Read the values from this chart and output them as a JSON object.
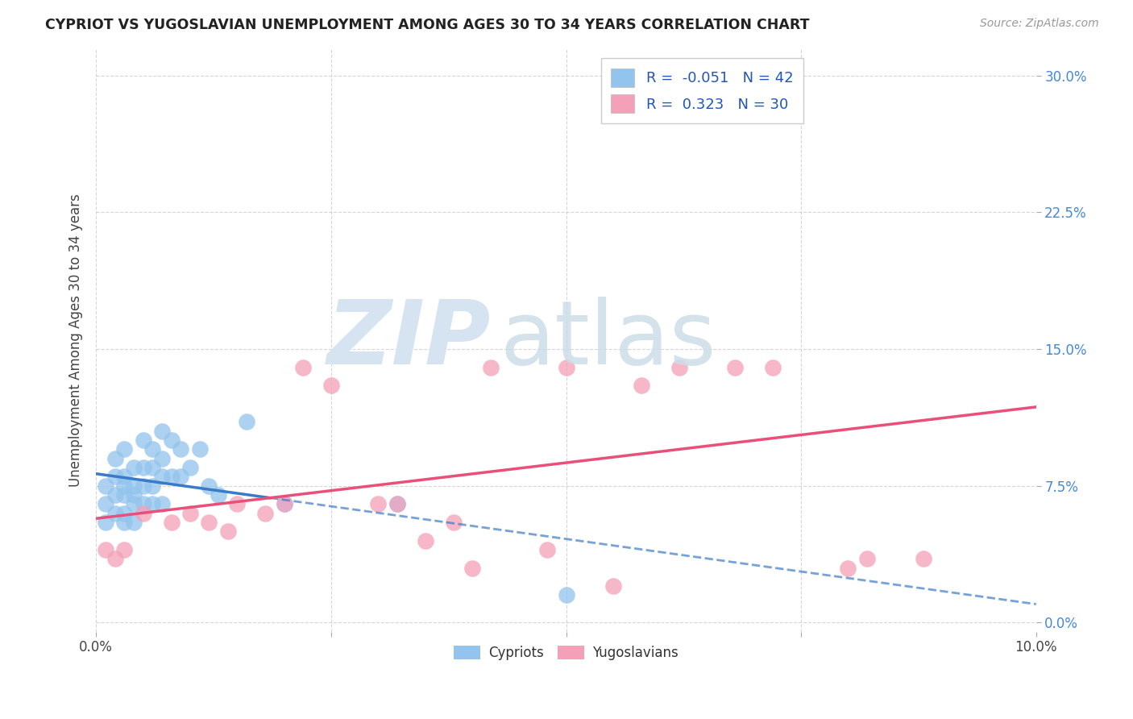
{
  "title": "CYPRIOT VS YUGOSLAVIAN UNEMPLOYMENT AMONG AGES 30 TO 34 YEARS CORRELATION CHART",
  "source": "Source: ZipAtlas.com",
  "ylabel": "Unemployment Among Ages 30 to 34 years",
  "xlim": [
    0.0,
    0.1
  ],
  "ylim": [
    -0.005,
    0.315
  ],
  "xticks": [
    0.0,
    0.025,
    0.05,
    0.075,
    0.1
  ],
  "xticklabels": [
    "0.0%",
    "",
    "",
    "",
    "10.0%"
  ],
  "yticks": [
    0.0,
    0.075,
    0.15,
    0.225,
    0.3
  ],
  "background_color": "#ffffff",
  "grid_color": "#cccccc",
  "cypriot_color": "#92C4ED",
  "yugoslavian_color": "#F4A0B8",
  "cypriot_line_color": "#3A7BC8",
  "yugoslavian_line_color": "#E8507A",
  "cypriot_R": -0.051,
  "cypriot_N": 42,
  "yugoslavian_R": 0.323,
  "yugoslavian_N": 30,
  "cypriot_x": [
    0.001,
    0.001,
    0.001,
    0.002,
    0.002,
    0.002,
    0.002,
    0.003,
    0.003,
    0.003,
    0.003,
    0.003,
    0.003,
    0.004,
    0.004,
    0.004,
    0.004,
    0.004,
    0.005,
    0.005,
    0.005,
    0.005,
    0.006,
    0.006,
    0.006,
    0.006,
    0.007,
    0.007,
    0.007,
    0.007,
    0.008,
    0.008,
    0.009,
    0.009,
    0.01,
    0.011,
    0.012,
    0.013,
    0.016,
    0.02,
    0.032,
    0.05
  ],
  "cypriot_y": [
    0.055,
    0.065,
    0.075,
    0.06,
    0.07,
    0.08,
    0.09,
    0.055,
    0.06,
    0.07,
    0.075,
    0.08,
    0.095,
    0.055,
    0.065,
    0.07,
    0.075,
    0.085,
    0.065,
    0.075,
    0.085,
    0.1,
    0.065,
    0.075,
    0.085,
    0.095,
    0.065,
    0.08,
    0.09,
    0.105,
    0.08,
    0.1,
    0.08,
    0.095,
    0.085,
    0.095,
    0.075,
    0.07,
    0.11,
    0.065,
    0.065,
    0.015
  ],
  "yugoslavian_x": [
    0.001,
    0.002,
    0.003,
    0.005,
    0.008,
    0.01,
    0.012,
    0.014,
    0.015,
    0.018,
    0.02,
    0.022,
    0.025,
    0.03,
    0.032,
    0.035,
    0.038,
    0.04,
    0.042,
    0.048,
    0.05,
    0.055,
    0.058,
    0.062,
    0.065,
    0.068,
    0.072,
    0.08,
    0.082,
    0.088
  ],
  "yugoslavian_y": [
    0.04,
    0.035,
    0.04,
    0.06,
    0.055,
    0.06,
    0.055,
    0.05,
    0.065,
    0.06,
    0.065,
    0.14,
    0.13,
    0.065,
    0.065,
    0.045,
    0.055,
    0.03,
    0.14,
    0.04,
    0.14,
    0.02,
    0.13,
    0.14,
    0.28,
    0.14,
    0.14,
    0.03,
    0.035,
    0.035
  ]
}
